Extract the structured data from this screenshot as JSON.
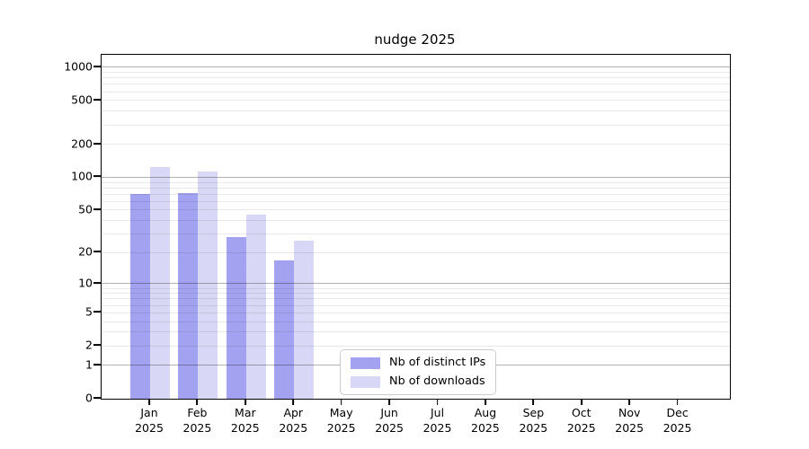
{
  "chart_data": {
    "type": "bar",
    "title": "nudge 2025",
    "categories": [
      "Jan",
      "Feb",
      "Mar",
      "Apr",
      "May",
      "Jun",
      "Jul",
      "Aug",
      "Sep",
      "Oct",
      "Nov",
      "Dec"
    ],
    "x_year_label": "2025",
    "series": [
      {
        "name": "Nb of distinct IPs",
        "color": "#a2a2f0",
        "values": [
          70,
          72,
          28,
          17,
          null,
          null,
          null,
          null,
          null,
          null,
          null,
          null
        ]
      },
      {
        "name": "Nb of downloads",
        "color": "#d8d8f6",
        "values": [
          125,
          114,
          45,
          26,
          null,
          null,
          null,
          null,
          null,
          null,
          null,
          null
        ]
      }
    ],
    "y_scale": "log1p",
    "y_axis_ticks": [
      1000,
      500,
      200,
      100,
      50,
      20,
      10,
      5,
      2,
      1,
      0
    ],
    "y_axis_range": [
      0,
      1300
    ],
    "grid": true,
    "gridlines": {
      "major_values": [
        1,
        10,
        100,
        1000
      ],
      "minor_rule": "2-9 of each decade up to 900"
    },
    "legend_position": "lower center",
    "colors": {
      "axis": "#000000",
      "background": "#ffffff",
      "major_gridline": "rgba(0,0,0,0.30)",
      "minor_gridline": "rgba(0,0,0,0.085)"
    }
  }
}
